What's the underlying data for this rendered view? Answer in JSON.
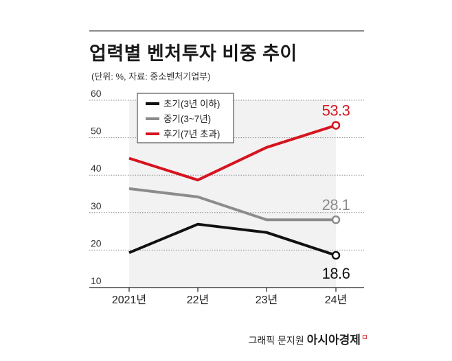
{
  "chart_data": {
    "type": "line",
    "title": "업력별 벤처투자 비중 추이",
    "subtitle": "(단위: %, 자료: 중소벤처기업부)",
    "categories": [
      "2021년",
      "22년",
      "23년",
      "24년"
    ],
    "ylim": [
      10,
      60
    ],
    "yticks": [
      "10",
      "20",
      "30",
      "40",
      "50",
      "60"
    ],
    "legend_position": "top-left",
    "series": [
      {
        "name": "초기(3년 이하)",
        "color": "#111111",
        "values": [
          19.3,
          26.9,
          24.7,
          18.6
        ],
        "end_label": "18.6"
      },
      {
        "name": "중기(3~7년)",
        "color": "#8c8c8c",
        "values": [
          36.4,
          34.2,
          28.1,
          28.1
        ],
        "end_label": "28.1"
      },
      {
        "name": "후기(7년 초과)",
        "color": "#d6141f",
        "values": [
          44.5,
          38.7,
          47.4,
          53.3
        ],
        "end_label": "53.3"
      }
    ]
  },
  "credit": {
    "author": "그래픽 문지원",
    "brand": "아시아경제",
    "brand_mark": "ㅁ"
  }
}
